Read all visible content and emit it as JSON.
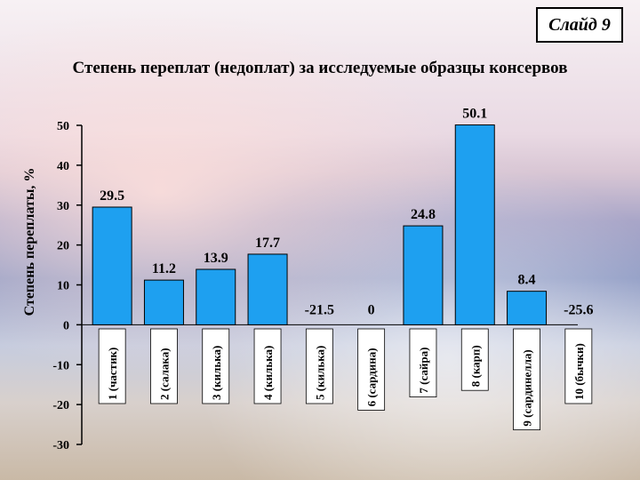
{
  "slide_label": "Слайд 9",
  "chart_data": {
    "type": "bar",
    "title": "Степень переплат (недоплат) за исследуемые образцы консервов",
    "xlabel": "",
    "ylabel": "Степень переплаты, %",
    "ylim": [
      -30,
      50
    ],
    "yticks": [
      -30,
      -20,
      -10,
      0,
      10,
      20,
      30,
      40,
      50
    ],
    "categories": [
      "1 (частик)",
      "2 (салака)",
      "3 (килька)",
      "4 (килька)",
      "5 (килька)",
      "6 (сардина)",
      "7 (сайра)",
      "8 (карп)",
      "9 (сардинелла)",
      "10 (бычки)"
    ],
    "values": [
      29.5,
      11.2,
      13.9,
      17.7,
      -21.5,
      0,
      24.8,
      50.1,
      8.4,
      -25.6
    ],
    "data_labels": [
      "29.5",
      "11.2",
      "13.9",
      "17.7",
      "-21.5",
      "0",
      "24.8",
      "50.1",
      "8.4",
      "-25.6"
    ],
    "bar_color": "#1ea0f0",
    "bar_edge_color": "#000000",
    "category_label_bg": "#ffffff",
    "grid": false,
    "legend": "none"
  }
}
